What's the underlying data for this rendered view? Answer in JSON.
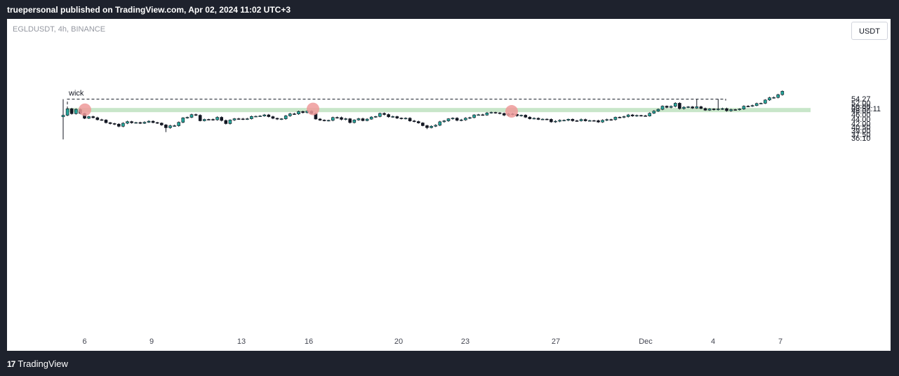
{
  "header": {
    "caption": "truepersonal published on TradingView.com, Apr 02, 2024 11:02 UTC+3"
  },
  "chart_header": {
    "symbol": "EGLDUSDT, 4h, BINANCE",
    "currency_button": "USDT"
  },
  "footer": {
    "brand": "TradingView",
    "logo": "17"
  },
  "annotations": {
    "wick_label": "wick"
  },
  "colors": {
    "up": "#26a69a",
    "down": "#131722",
    "zone": "#c8e6c9",
    "marker": "#ef9a9a"
  },
  "chart_data": {
    "type": "candlestick",
    "symbol": "EGLDUSDT",
    "interval": "4h",
    "exchange": "BINANCE",
    "y_scale": "log",
    "ylim": [
      35.0,
      61.0
    ],
    "y_ticks": [
      "36.10",
      "37.50",
      "39.00",
      "40.50",
      "42.00",
      "44.00",
      "46.00",
      "48.00",
      "50.00",
      "52.00"
    ],
    "last_price": "54.27",
    "countdown": "03:57:11",
    "x_ticks": [
      "6",
      "9",
      "13",
      "16",
      "20",
      "23",
      "27",
      "Dec",
      "4",
      "7"
    ],
    "support_resistance_zone": {
      "low": 47.2,
      "high": 49.3
    },
    "wick_level": 54.0,
    "touch_points": [
      {
        "x": "Nov 6",
        "price": 48.4
      },
      {
        "x": "Nov 16",
        "price": 48.8
      },
      {
        "x": "Nov 24",
        "price": 47.6
      }
    ],
    "close_path": [
      [
        0,
        45.5
      ],
      [
        1,
        48.5
      ],
      [
        2,
        47.0
      ],
      [
        3,
        48.6
      ],
      [
        4,
        46.5
      ],
      [
        5,
        44.4
      ],
      [
        7,
        44.8
      ],
      [
        11,
        41.7
      ],
      [
        13,
        41.3
      ],
      [
        15,
        42.7
      ],
      [
        17,
        42.0
      ],
      [
        19,
        42.8
      ],
      [
        21,
        42.5
      ],
      [
        24,
        40.7
      ],
      [
        26,
        40.9
      ],
      [
        28,
        44.2
      ],
      [
        30,
        46.2
      ],
      [
        31,
        45.3
      ],
      [
        32,
        43.3
      ],
      [
        36,
        44.4
      ],
      [
        38,
        42.0
      ],
      [
        40,
        44.6
      ],
      [
        42,
        43.5
      ],
      [
        44,
        45.0
      ],
      [
        46,
        45.8
      ],
      [
        48,
        45.0
      ],
      [
        50,
        43.8
      ],
      [
        52,
        45.3
      ],
      [
        54,
        46.6
      ],
      [
        55,
        47.4
      ],
      [
        56,
        47.2
      ],
      [
        57,
        48.0
      ],
      [
        58,
        46.0
      ],
      [
        59,
        44.0
      ],
      [
        61,
        43.2
      ],
      [
        63,
        44.4
      ],
      [
        66,
        44.0
      ],
      [
        67,
        42.6
      ],
      [
        68,
        43.7
      ],
      [
        70,
        43.4
      ],
      [
        72,
        44.8
      ],
      [
        74,
        46.2
      ],
      [
        76,
        45.4
      ],
      [
        79,
        44.2
      ],
      [
        82,
        43.0
      ],
      [
        84,
        41.3
      ],
      [
        85,
        39.8
      ],
      [
        86,
        40.7
      ],
      [
        88,
        42.6
      ],
      [
        90,
        44.0
      ],
      [
        93,
        43.7
      ],
      [
        95,
        44.8
      ],
      [
        97,
        46.0
      ],
      [
        99,
        46.6
      ],
      [
        100,
        47.2
      ],
      [
        102,
        46.2
      ],
      [
        104,
        46.4
      ],
      [
        106,
        45.6
      ],
      [
        108,
        45.0
      ],
      [
        110,
        44.0
      ],
      [
        113,
        43.6
      ],
      [
        115,
        42.9
      ],
      [
        117,
        43.5
      ],
      [
        120,
        43.5
      ],
      [
        123,
        43.1
      ],
      [
        126,
        43.2
      ],
      [
        128,
        43.8
      ],
      [
        130,
        45.2
      ],
      [
        133,
        45.5
      ],
      [
        135,
        45.5
      ],
      [
        137,
        46.3
      ],
      [
        138,
        47.5
      ],
      [
        140,
        50.0
      ],
      [
        142,
        50.2
      ],
      [
        143,
        51.2
      ],
      [
        144,
        49.2
      ],
      [
        146,
        50.0
      ],
      [
        148,
        49.4
      ],
      [
        150,
        48.4
      ],
      [
        152,
        48.9
      ],
      [
        155,
        48.2
      ],
      [
        157,
        48.6
      ],
      [
        159,
        49.6
      ],
      [
        161,
        50.8
      ],
      [
        163,
        52.2
      ],
      [
        165,
        54.3
      ],
      [
        167,
        56.5
      ],
      [
        168,
        58.8
      ]
    ]
  }
}
